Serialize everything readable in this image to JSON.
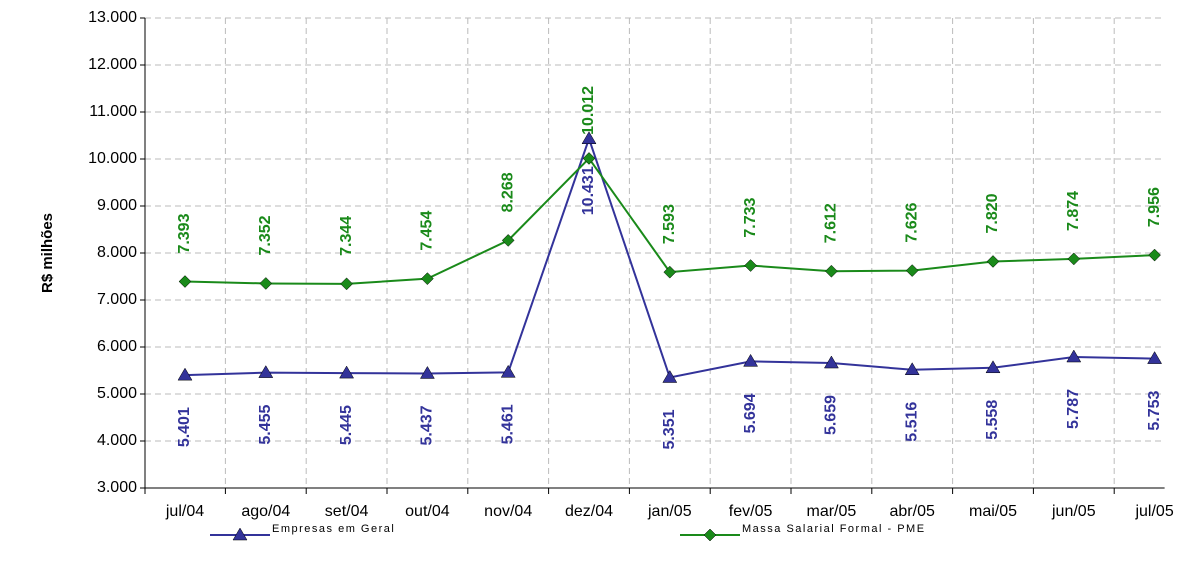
{
  "chart_data": {
    "type": "line",
    "ylabel": "R$ milhões",
    "categories": [
      "jul/04",
      "ago/04",
      "set/04",
      "out/04",
      "nov/04",
      "dez/04",
      "jan/05",
      "fev/05",
      "mar/05",
      "abr/05",
      "mai/05",
      "jun/05",
      "jul/05"
    ],
    "series": [
      {
        "name": "Empresas em Geral",
        "color": "#33339a",
        "marker": "triangle",
        "values": [
          5401,
          5455,
          5445,
          5437,
          5461,
          10431,
          5351,
          5694,
          5659,
          5516,
          5558,
          5787,
          5753
        ],
        "value_labels": [
          "5.401",
          "5.455",
          "5.445",
          "5.437",
          "5.461",
          "10.431",
          "5.351",
          "5.694",
          "5.659",
          "5.516",
          "5.558",
          "5.787",
          "5.753"
        ]
      },
      {
        "name": "Massa Salarial Formal - PME",
        "color": "#1a8a1a",
        "marker": "diamond",
        "values": [
          7393,
          7352,
          7344,
          7454,
          8268,
          10012,
          7593,
          7733,
          7612,
          7626,
          7820,
          7874,
          7956
        ],
        "value_labels": [
          "7.393",
          "7.352",
          "7.344",
          "7.454",
          "8.268",
          "10.012",
          "7.593",
          "7.733",
          "7.612",
          "7.626",
          "7.820",
          "7.874",
          "7.956"
        ]
      }
    ],
    "ylim": [
      3000,
      13000
    ],
    "yticks": [
      {
        "value": 3000,
        "label": "3.000"
      },
      {
        "value": 4000,
        "label": "4.000"
      },
      {
        "value": 5000,
        "label": "5.000"
      },
      {
        "value": 6000,
        "label": "6.000"
      },
      {
        "value": 7000,
        "label": "7.000"
      },
      {
        "value": 8000,
        "label": "8.000"
      },
      {
        "value": 9000,
        "label": "9.000"
      },
      {
        "value": 10000,
        "label": "10.000"
      },
      {
        "value": 11000,
        "label": "11.000"
      },
      {
        "value": 12000,
        "label": "12.000"
      },
      {
        "value": 13000,
        "label": "13.000"
      }
    ],
    "grid": true
  }
}
